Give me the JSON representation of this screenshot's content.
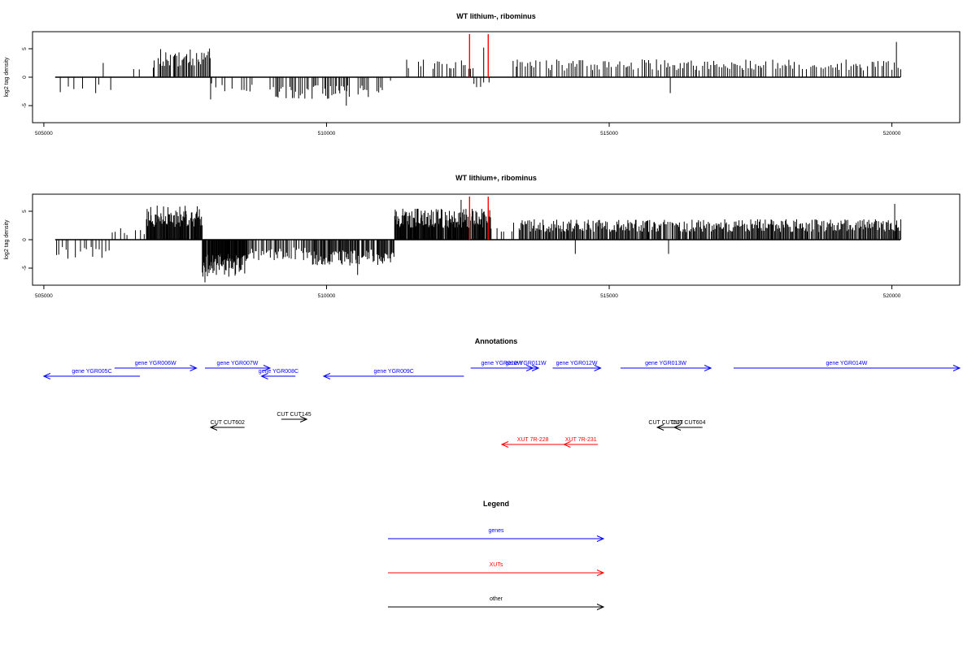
{
  "colors": {
    "gene": "#0000ff",
    "xut": "#ff0000",
    "other": "#000000",
    "highlight": "#ff0000",
    "axis": "#000000"
  },
  "chart_data": [
    {
      "type": "bar",
      "title": "WT lithium-, ribominus",
      "ylabel": "log2 tag density",
      "xlim": [
        504800,
        521200
      ],
      "ylim": [
        -8,
        8
      ],
      "xticks": [
        505000,
        510000,
        515000,
        520000
      ],
      "xtick_labels": [
        "505000",
        "510000",
        "515000",
        "520000"
      ],
      "yticks": [
        -5,
        0,
        5
      ],
      "ytick_labels": [
        "-5",
        "0",
        "5"
      ],
      "baseline": {
        "x_start": 505200,
        "x_end": 520150
      },
      "highlight_x": [
        512530,
        512860
      ],
      "profile": [
        {
          "x_start": 505200,
          "x_end": 506300,
          "step": 75,
          "level": -2.6,
          "p": 0.65
        },
        {
          "x_start": 506300,
          "x_end": 506950,
          "step": 90,
          "level": 1.5,
          "p": 0.3
        },
        {
          "x_start": 506950,
          "x_end": 507950,
          "step": 22,
          "level": 4.2,
          "p": 0.95
        },
        {
          "x_start": 507950,
          "x_end": 508700,
          "step": 45,
          "level": -2.4,
          "p": 0.7
        },
        {
          "x_start": 508700,
          "x_end": 509000,
          "step": 100,
          "level": 1.5,
          "p": 0.3
        },
        {
          "x_start": 509000,
          "x_end": 510400,
          "step": 28,
          "level": -3.2,
          "p": 0.85
        },
        {
          "x_start": 510400,
          "x_end": 511000,
          "step": 30,
          "level": -3.0,
          "p": 0.75
        },
        {
          "x_start": 511000,
          "x_end": 511400,
          "step": 120,
          "level": -1.0,
          "p": 0.3
        },
        {
          "x_start": 511400,
          "x_end": 512600,
          "step": 42,
          "level": 2.6,
          "p": 0.72
        },
        {
          "x_start": 512600,
          "x_end": 513300,
          "step": 50,
          "level": -1.8,
          "p": 0.35
        },
        {
          "x_start": 513300,
          "x_end": 520150,
          "step": 36,
          "level": 2.6,
          "p": 0.85
        }
      ],
      "spikes": [
        {
          "x": 506050,
          "y": 2.5
        },
        {
          "x": 516080,
          "y": -2.8
        },
        {
          "x": 520080,
          "y": 6.2
        },
        {
          "x": 512780,
          "y": 5.2
        },
        {
          "x": 507950,
          "y": -3.9
        },
        {
          "x": 510350,
          "y": -5.0
        }
      ]
    },
    {
      "type": "bar",
      "title": "WT lithium+, ribominus",
      "ylabel": "log2 tag density",
      "xlim": [
        504800,
        521200
      ],
      "ylim": [
        -8,
        8
      ],
      "xticks": [
        505000,
        510000,
        515000,
        520000
      ],
      "xtick_labels": [
        "505000",
        "510000",
        "515000",
        "520000"
      ],
      "yticks": [
        -5,
        0,
        5
      ],
      "ytick_labels": [
        "-5",
        "0",
        "5"
      ],
      "baseline": {
        "x_start": 505200,
        "x_end": 520150
      },
      "highlight_x": [
        512530,
        512860
      ],
      "profile": [
        {
          "x_start": 505200,
          "x_end": 506200,
          "step": 55,
          "level": -2.8,
          "p": 0.8
        },
        {
          "x_start": 506200,
          "x_end": 506800,
          "step": 50,
          "level": 1.8,
          "p": 0.6
        },
        {
          "x_start": 506800,
          "x_end": 507800,
          "step": 12,
          "level": 5.0,
          "p": 0.97
        },
        {
          "x_start": 507800,
          "x_end": 508600,
          "step": 10,
          "level": -5.5,
          "p": 0.97
        },
        {
          "x_start": 508600,
          "x_end": 509700,
          "step": 22,
          "level": -3.0,
          "p": 0.85
        },
        {
          "x_start": 509700,
          "x_end": 511200,
          "step": 15,
          "level": -3.8,
          "p": 0.92
        },
        {
          "x_start": 511200,
          "x_end": 512900,
          "step": 11,
          "level": 4.6,
          "p": 0.97
        },
        {
          "x_start": 512900,
          "x_end": 513400,
          "step": 45,
          "level": 2.5,
          "p": 0.55
        },
        {
          "x_start": 513400,
          "x_end": 520150,
          "step": 17,
          "level": 3.0,
          "p": 0.93
        }
      ],
      "spikes": [
        {
          "x": 507850,
          "y": -7.5
        },
        {
          "x": 510550,
          "y": -6.2
        },
        {
          "x": 512380,
          "y": 7.0
        },
        {
          "x": 514400,
          "y": -2.5
        },
        {
          "x": 516050,
          "y": -2.5
        },
        {
          "x": 520050,
          "y": 6.3
        }
      ]
    }
  ],
  "annotations": {
    "title": "Annotations",
    "xlim": [
      504800,
      521200
    ],
    "features": [
      {
        "label": "gene YGR005C",
        "kind": "gene",
        "x_start": 505000,
        "x_end": 506700,
        "strand": "-",
        "row": 0
      },
      {
        "label": "gene YGR006W",
        "kind": "gene",
        "x_start": 506250,
        "x_end": 507700,
        "strand": "+",
        "row": 1
      },
      {
        "label": "gene YGR007W",
        "kind": "gene",
        "x_start": 507850,
        "x_end": 509000,
        "strand": "+",
        "row": 1
      },
      {
        "label": "gene YGR008C",
        "kind": "gene",
        "x_start": 508850,
        "x_end": 509450,
        "strand": "-",
        "row": 0
      },
      {
        "label": "gene YGR009C",
        "kind": "gene",
        "x_start": 509950,
        "x_end": 512430,
        "strand": "-",
        "row": 0
      },
      {
        "label": "gene YGR010W",
        "kind": "gene",
        "x_start": 512550,
        "x_end": 513650,
        "strand": "+",
        "row": 1
      },
      {
        "label": "gene YGR011W",
        "kind": "gene",
        "x_start": 513300,
        "x_end": 513750,
        "strand": "+",
        "row": 1
      },
      {
        "label": "gene YGR012W",
        "kind": "gene",
        "x_start": 514000,
        "x_end": 514850,
        "strand": "+",
        "row": 1
      },
      {
        "label": "gene YGR013W",
        "kind": "gene",
        "x_start": 515200,
        "x_end": 516800,
        "strand": "+",
        "row": 1
      },
      {
        "label": "gene YGR014W",
        "kind": "gene",
        "x_start": 517200,
        "x_end": 521200,
        "strand": "+",
        "row": 1
      },
      {
        "label": "CUT CUT145",
        "kind": "other",
        "x_start": 509200,
        "x_end": 509650,
        "strand": "+",
        "row": 2
      },
      {
        "label": "CUT CUT602",
        "kind": "other",
        "x_start": 507950,
        "x_end": 508550,
        "strand": "-",
        "row": 3
      },
      {
        "label": "CUT CUT603",
        "kind": "other",
        "x_start": 515850,
        "x_end": 516150,
        "strand": "-",
        "row": 3
      },
      {
        "label": "CUT CUT604",
        "kind": "other",
        "x_start": 516150,
        "x_end": 516650,
        "strand": "-",
        "row": 3
      },
      {
        "label": "XUT 7R-228",
        "kind": "xut",
        "x_start": 513100,
        "x_end": 514200,
        "strand": "-",
        "row": 4
      },
      {
        "label": "XUT 7R-231",
        "kind": "xut",
        "x_start": 514200,
        "x_end": 514800,
        "strand": "-",
        "row": 4
      }
    ]
  },
  "legend": {
    "title": "Legend",
    "items": [
      {
        "label": "genes",
        "kind": "gene"
      },
      {
        "label": "XUTs",
        "kind": "xut"
      },
      {
        "label": "other",
        "kind": "other"
      }
    ]
  }
}
